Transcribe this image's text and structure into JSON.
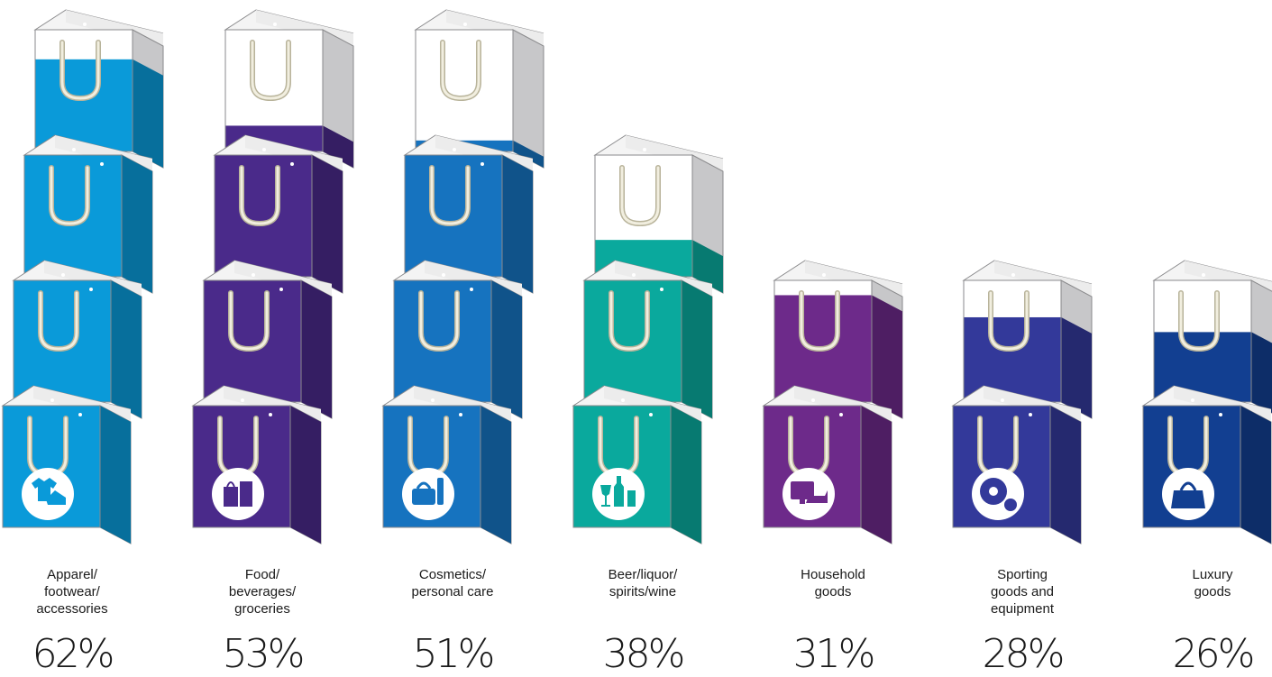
{
  "chart_data": {
    "type": "bar",
    "title": "",
    "xlabel": "",
    "ylabel": "",
    "ylim": [
      0,
      100
    ],
    "unit_per_icon": 16.5,
    "categories": [
      "Apparel/\nfootwear/\naccessories",
      "Food/\nbeverages/\ngroceries",
      "Cosmetics/\npersonal care",
      "Beer/liquor/\nspirits/wine",
      "Household\ngoods",
      "Sporting\ngoods and\nequipment",
      "Luxury\ngoods"
    ],
    "values": [
      62,
      53,
      51,
      38,
      31,
      28,
      26
    ],
    "value_labels": [
      "62%",
      "53%",
      "51%",
      "38%",
      "31%",
      "28%",
      "26%"
    ],
    "colors": [
      "#0a9ad9",
      "#4a2a8a",
      "#1673bf",
      "#0aa99d",
      "#6d2a8a",
      "#33399a",
      "#123f91"
    ],
    "icons": [
      "tshirt-shoe-icon",
      "grocery-bag-icon",
      "toiletry-bag-icon",
      "wine-bottle-glass-icon",
      "tv-sofa-icon",
      "soccer-tennis-ball-icon",
      "handbag-icon"
    ]
  }
}
